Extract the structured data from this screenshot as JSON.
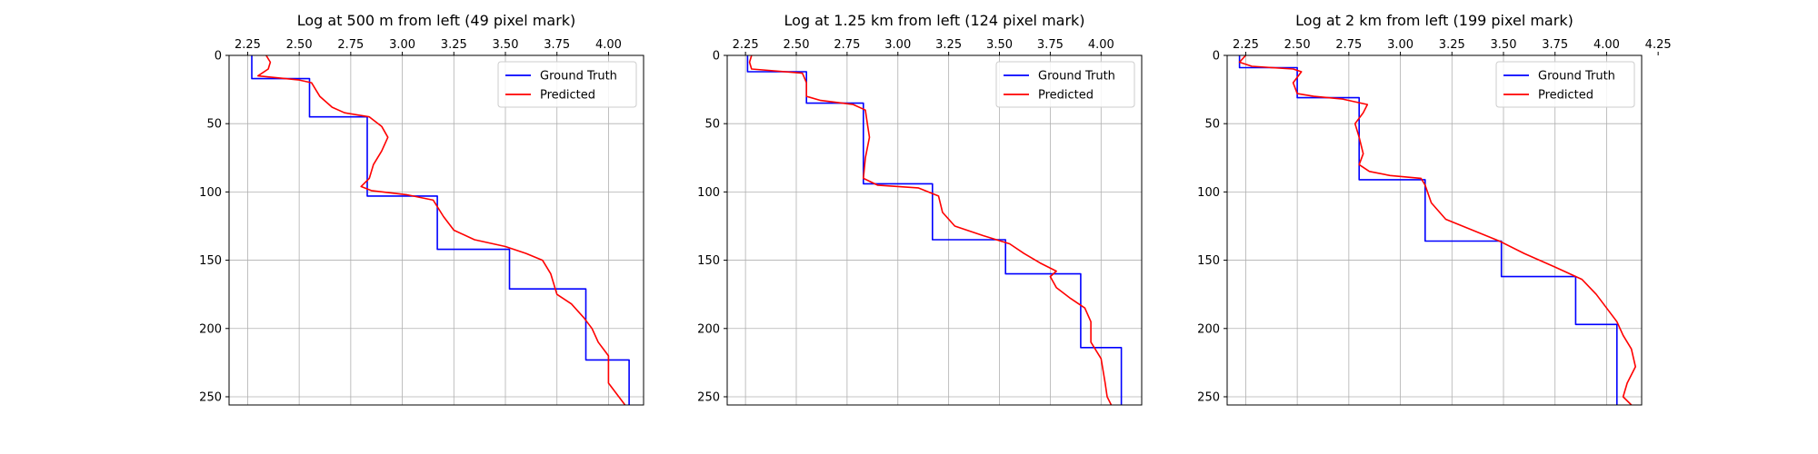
{
  "chart_data": [
    {
      "type": "line",
      "title": "Log at 500 m from left (49 pixel mark)",
      "xlabel": "",
      "ylabel": "",
      "xlim": [
        2.16,
        4.17
      ],
      "ylim": [
        256,
        0
      ],
      "xticks": [
        "2.25",
        "2.50",
        "2.75",
        "3.00",
        "3.25",
        "3.50",
        "3.75",
        "4.00"
      ],
      "yticks": [
        "0",
        "50",
        "100",
        "150",
        "200",
        "250"
      ],
      "x_axis_position": "top",
      "grid": true,
      "legend": "top-right",
      "series": [
        {
          "name": "Ground Truth",
          "color": "#0000ff",
          "points": [
            [
              2.27,
              0
            ],
            [
              2.27,
              17
            ],
            [
              2.55,
              17
            ],
            [
              2.55,
              45
            ],
            [
              2.83,
              45
            ],
            [
              2.83,
              103
            ],
            [
              3.17,
              103
            ],
            [
              3.17,
              142
            ],
            [
              3.52,
              142
            ],
            [
              3.52,
              171
            ],
            [
              3.89,
              171
            ],
            [
              3.89,
              223
            ],
            [
              4.1,
              223
            ],
            [
              4.1,
              256
            ]
          ]
        },
        {
          "name": "Predicted",
          "color": "#ff0000",
          "points": [
            [
              2.34,
              0
            ],
            [
              2.36,
              5
            ],
            [
              2.35,
              10
            ],
            [
              2.3,
              15
            ],
            [
              2.5,
              18
            ],
            [
              2.56,
              20
            ],
            [
              2.6,
              30
            ],
            [
              2.66,
              38
            ],
            [
              2.72,
              42
            ],
            [
              2.84,
              45
            ],
            [
              2.9,
              52
            ],
            [
              2.93,
              60
            ],
            [
              2.9,
              70
            ],
            [
              2.86,
              80
            ],
            [
              2.84,
              90
            ],
            [
              2.8,
              96
            ],
            [
              2.85,
              99
            ],
            [
              3.02,
              102
            ],
            [
              3.15,
              106
            ],
            [
              3.2,
              118
            ],
            [
              3.25,
              128
            ],
            [
              3.35,
              135
            ],
            [
              3.5,
              140
            ],
            [
              3.6,
              145
            ],
            [
              3.68,
              150
            ],
            [
              3.72,
              160
            ],
            [
              3.75,
              175
            ],
            [
              3.82,
              182
            ],
            [
              3.88,
              192
            ],
            [
              3.92,
              200
            ],
            [
              3.95,
              210
            ],
            [
              4.0,
              220
            ],
            [
              4.0,
              230
            ],
            [
              4.0,
              240
            ],
            [
              4.05,
              250
            ],
            [
              4.08,
              256
            ]
          ]
        }
      ]
    },
    {
      "type": "line",
      "title": "Log at 1.25 km from left (124 pixel mark)",
      "xlabel": "",
      "ylabel": "",
      "xlim": [
        2.16,
        4.2
      ],
      "ylim": [
        256,
        0
      ],
      "xticks": [
        "2.25",
        "2.50",
        "2.75",
        "3.00",
        "3.25",
        "3.50",
        "3.75",
        "4.00"
      ],
      "yticks": [
        "0",
        "50",
        "100",
        "150",
        "200",
        "250"
      ],
      "x_axis_position": "top",
      "grid": true,
      "legend": "top-right",
      "series": [
        {
          "name": "Ground Truth",
          "color": "#0000ff",
          "points": [
            [
              2.26,
              0
            ],
            [
              2.26,
              12
            ],
            [
              2.55,
              12
            ],
            [
              2.55,
              35
            ],
            [
              2.83,
              35
            ],
            [
              2.83,
              94
            ],
            [
              3.17,
              94
            ],
            [
              3.17,
              135
            ],
            [
              3.53,
              135
            ],
            [
              3.53,
              160
            ],
            [
              3.9,
              160
            ],
            [
              3.9,
              214
            ],
            [
              4.1,
              214
            ],
            [
              4.1,
              256
            ]
          ]
        },
        {
          "name": "Predicted",
          "color": "#ff0000",
          "points": [
            [
              2.28,
              0
            ],
            [
              2.27,
              5
            ],
            [
              2.28,
              10
            ],
            [
              2.53,
              13
            ],
            [
              2.55,
              20
            ],
            [
              2.55,
              30
            ],
            [
              2.62,
              33
            ],
            [
              2.78,
              36
            ],
            [
              2.84,
              40
            ],
            [
              2.85,
              50
            ],
            [
              2.86,
              60
            ],
            [
              2.84,
              75
            ],
            [
              2.83,
              90
            ],
            [
              2.9,
              95
            ],
            [
              3.1,
              97
            ],
            [
              3.2,
              103
            ],
            [
              3.22,
              115
            ],
            [
              3.28,
              125
            ],
            [
              3.42,
              132
            ],
            [
              3.55,
              138
            ],
            [
              3.62,
              145
            ],
            [
              3.7,
              152
            ],
            [
              3.78,
              158
            ],
            [
              3.75,
              162
            ],
            [
              3.78,
              170
            ],
            [
              3.85,
              178
            ],
            [
              3.92,
              185
            ],
            [
              3.95,
              195
            ],
            [
              3.95,
              210
            ],
            [
              4.0,
              222
            ],
            [
              4.02,
              240
            ],
            [
              4.03,
              250
            ],
            [
              4.05,
              256
            ]
          ]
        }
      ]
    },
    {
      "type": "line",
      "title": "Log at 2 km from left (199 pixel mark)",
      "xlabel": "",
      "ylabel": "",
      "xlim": [
        2.16,
        4.17
      ],
      "ylim": [
        256,
        0
      ],
      "xticks": [
        "2.25",
        "2.50",
        "2.75",
        "3.00",
        "3.25",
        "3.50",
        "3.75",
        "4.00",
        "4.25"
      ],
      "yticks": [
        "0",
        "50",
        "100",
        "150",
        "200",
        "250"
      ],
      "x_axis_position": "top",
      "grid": true,
      "legend": "top-right",
      "series": [
        {
          "name": "Ground Truth",
          "color": "#0000ff",
          "points": [
            [
              2.22,
              0
            ],
            [
              2.22,
              9
            ],
            [
              2.5,
              9
            ],
            [
              2.5,
              31
            ],
            [
              2.8,
              31
            ],
            [
              2.8,
              91
            ],
            [
              3.12,
              91
            ],
            [
              3.12,
              136
            ],
            [
              3.49,
              136
            ],
            [
              3.49,
              162
            ],
            [
              3.85,
              162
            ],
            [
              3.85,
              197
            ],
            [
              4.05,
              197
            ],
            [
              4.05,
              256
            ]
          ]
        },
        {
          "name": "Predicted",
          "color": "#ff0000",
          "points": [
            [
              2.25,
              0
            ],
            [
              2.22,
              5
            ],
            [
              2.28,
              8
            ],
            [
              2.48,
              10
            ],
            [
              2.52,
              12
            ],
            [
              2.48,
              20
            ],
            [
              2.5,
              28
            ],
            [
              2.58,
              30
            ],
            [
              2.72,
              32
            ],
            [
              2.84,
              36
            ],
            [
              2.82,
              42
            ],
            [
              2.78,
              50
            ],
            [
              2.8,
              60
            ],
            [
              2.82,
              72
            ],
            [
              2.8,
              80
            ],
            [
              2.85,
              85
            ],
            [
              2.95,
              88
            ],
            [
              3.1,
              90
            ],
            [
              3.12,
              95
            ],
            [
              3.15,
              108
            ],
            [
              3.22,
              120
            ],
            [
              3.35,
              128
            ],
            [
              3.48,
              136
            ],
            [
              3.6,
              145
            ],
            [
              3.75,
              155
            ],
            [
              3.88,
              164
            ],
            [
              3.95,
              175
            ],
            [
              4.0,
              185
            ],
            [
              4.05,
              195
            ],
            [
              4.08,
              205
            ],
            [
              4.12,
              215
            ],
            [
              4.14,
              228
            ],
            [
              4.1,
              240
            ],
            [
              4.08,
              250
            ],
            [
              4.12,
              256
            ]
          ]
        }
      ]
    }
  ]
}
